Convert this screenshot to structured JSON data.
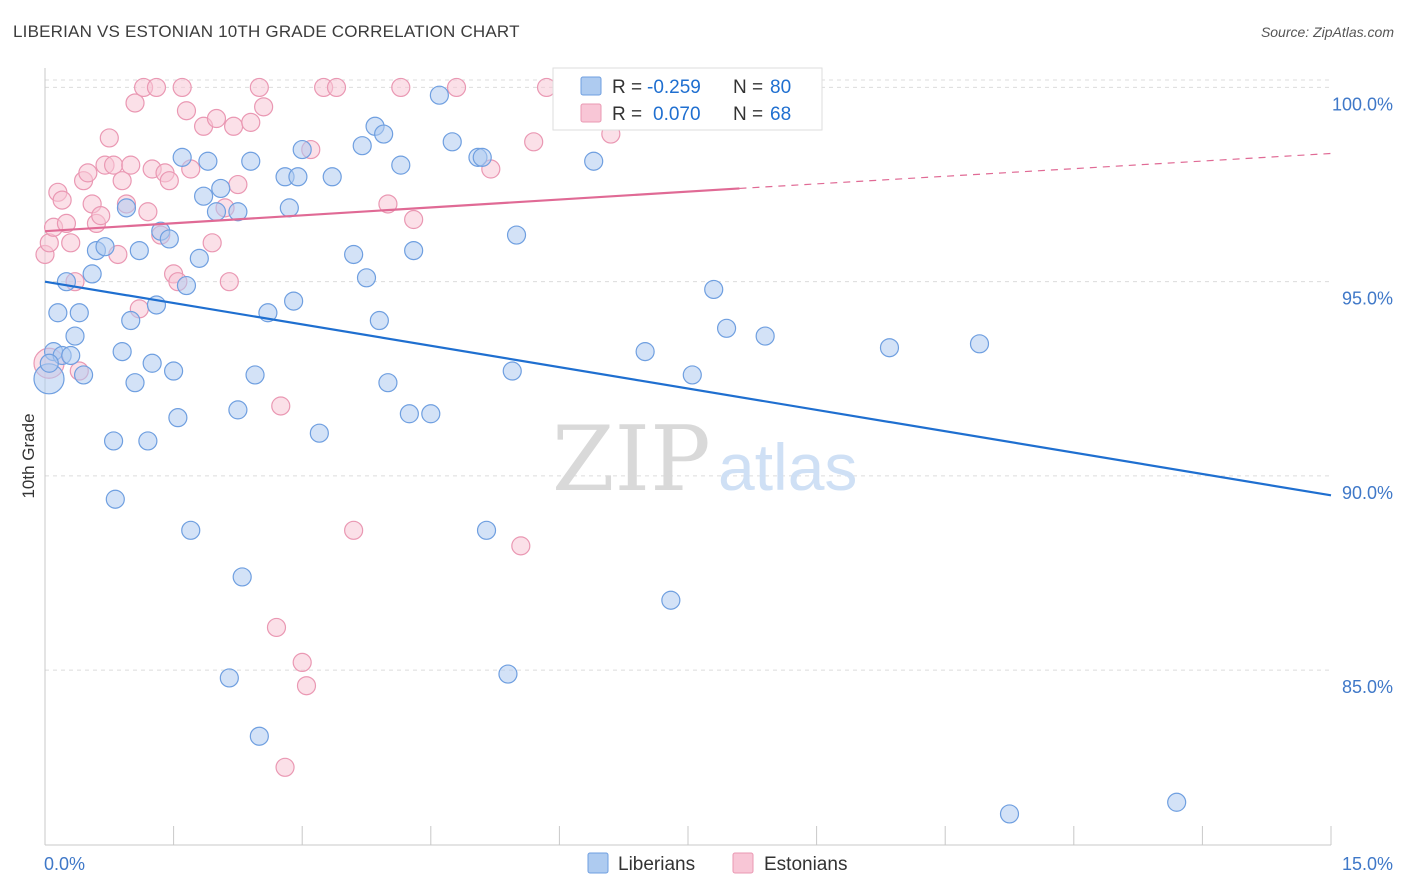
{
  "title": "LIBERIAN VS ESTONIAN 10TH GRADE CORRELATION CHART",
  "source": "Source: ZipAtlas.com",
  "watermark": {
    "zip": "ZIP",
    "atlas": "atlas"
  },
  "colors": {
    "blue": "#1f6fd0",
    "blue_fill": "#aecbf0",
    "blue_stroke": "#6f9fe0",
    "pink": "#e06a95",
    "pink_fill": "#f8c6d6",
    "pink_stroke": "#ea98b3",
    "tick_label": "#3f78c8",
    "grid": "#dcdcdc"
  },
  "legend_box": {
    "rows": [
      {
        "r_label": "R =",
        "r_value": "-0.259",
        "n_label": "N =",
        "n_value": "80",
        "series": "blue"
      },
      {
        "r_label": "R =",
        "r_value": "0.070",
        "n_label": "N =",
        "n_value": "68",
        "series": "pink"
      }
    ]
  },
  "chart_data": {
    "type": "scatter",
    "title": "LIBERIAN VS ESTONIAN 10TH GRADE CORRELATION CHART",
    "ylabel": "10th Grade",
    "xlabel": "",
    "xlim": [
      0,
      15
    ],
    "ylim": [
      80.5,
      100.5
    ],
    "x_tick_labels": [
      "0.0%",
      "15.0%"
    ],
    "y_ticks": [
      85,
      90,
      95,
      100
    ],
    "y_tick_labels": [
      "85.0%",
      "90.0%",
      "95.0%",
      "100.0%"
    ],
    "grid": true,
    "legend_position": "bottom",
    "series": [
      {
        "name": "Liberians",
        "color": "blue",
        "r": -0.259,
        "n": 80,
        "trend": {
          "x": [
            0,
            15
          ],
          "y": [
            95.0,
            89.5
          ]
        },
        "points": [
          [
            0.0,
            92.5
          ],
          [
            0.1,
            93.2
          ],
          [
            0.15,
            94.2
          ],
          [
            0.2,
            93.1
          ],
          [
            0.25,
            95.0
          ],
          [
            0.3,
            93.1
          ],
          [
            0.35,
            93.6
          ],
          [
            0.4,
            94.2
          ],
          [
            0.45,
            92.6
          ],
          [
            0.55,
            95.2
          ],
          [
            0.6,
            95.8
          ],
          [
            0.7,
            95.9
          ],
          [
            0.8,
            90.9
          ],
          [
            0.82,
            89.4
          ],
          [
            0.9,
            93.2
          ],
          [
            0.95,
            96.9
          ],
          [
            1.0,
            94.0
          ],
          [
            1.05,
            92.4
          ],
          [
            1.1,
            95.8
          ],
          [
            1.2,
            90.9
          ],
          [
            1.25,
            92.9
          ],
          [
            1.3,
            94.4
          ],
          [
            1.35,
            96.3
          ],
          [
            1.45,
            96.1
          ],
          [
            1.5,
            92.7
          ],
          [
            1.55,
            91.5
          ],
          [
            1.6,
            98.2
          ],
          [
            1.65,
            94.9
          ],
          [
            1.7,
            88.6
          ],
          [
            1.8,
            95.6
          ],
          [
            1.85,
            97.2
          ],
          [
            1.9,
            98.1
          ],
          [
            2.0,
            96.8
          ],
          [
            2.05,
            97.4
          ],
          [
            2.15,
            84.8
          ],
          [
            2.25,
            96.8
          ],
          [
            2.25,
            91.7
          ],
          [
            2.3,
            87.4
          ],
          [
            2.4,
            98.1
          ],
          [
            2.45,
            92.6
          ],
          [
            2.5,
            83.3
          ],
          [
            2.6,
            94.2
          ],
          [
            2.8,
            97.7
          ],
          [
            2.85,
            96.9
          ],
          [
            2.9,
            94.5
          ],
          [
            2.95,
            97.7
          ],
          [
            3.0,
            98.4
          ],
          [
            3.2,
            91.1
          ],
          [
            3.35,
            97.7
          ],
          [
            3.6,
            95.7
          ],
          [
            3.7,
            98.5
          ],
          [
            3.75,
            95.1
          ],
          [
            3.85,
            99.0
          ],
          [
            3.9,
            94.0
          ],
          [
            3.95,
            98.8
          ],
          [
            4.0,
            92.4
          ],
          [
            4.15,
            98.0
          ],
          [
            4.25,
            91.6
          ],
          [
            4.3,
            95.8
          ],
          [
            4.5,
            91.6
          ],
          [
            4.6,
            99.8
          ],
          [
            4.75,
            98.6
          ],
          [
            5.05,
            98.2
          ],
          [
            5.1,
            98.2
          ],
          [
            5.15,
            88.6
          ],
          [
            5.4,
            84.9
          ],
          [
            5.45,
            92.7
          ],
          [
            5.5,
            96.2
          ],
          [
            6.4,
            98.1
          ],
          [
            7.0,
            93.2
          ],
          [
            7.3,
            86.8
          ],
          [
            7.55,
            92.6
          ],
          [
            7.8,
            94.8
          ],
          [
            7.95,
            93.8
          ],
          [
            8.4,
            93.6
          ],
          [
            9.85,
            93.3
          ],
          [
            10.9,
            93.4
          ],
          [
            11.25,
            81.3
          ],
          [
            13.2,
            81.6
          ],
          [
            0.05,
            92.9
          ]
        ]
      },
      {
        "name": "Estonians",
        "color": "pink",
        "r": 0.07,
        "n": 68,
        "trend": {
          "x": [
            0,
            8.1,
            15
          ],
          "y": [
            96.3,
            97.4,
            98.3
          ]
        },
        "points": [
          [
            0.0,
            95.7
          ],
          [
            0.05,
            96.0
          ],
          [
            0.1,
            96.4
          ],
          [
            0.15,
            97.3
          ],
          [
            0.2,
            97.1
          ],
          [
            0.25,
            96.5
          ],
          [
            0.3,
            96.0
          ],
          [
            0.35,
            95.0
          ],
          [
            0.4,
            92.7
          ],
          [
            0.45,
            97.6
          ],
          [
            0.5,
            97.8
          ],
          [
            0.55,
            97.0
          ],
          [
            0.6,
            96.5
          ],
          [
            0.65,
            96.7
          ],
          [
            0.7,
            98.0
          ],
          [
            0.75,
            98.7
          ],
          [
            0.8,
            98.0
          ],
          [
            0.85,
            95.7
          ],
          [
            0.9,
            97.6
          ],
          [
            0.95,
            97.0
          ],
          [
            1.0,
            98.0
          ],
          [
            1.05,
            99.6
          ],
          [
            1.1,
            94.3
          ],
          [
            1.15,
            100.0
          ],
          [
            1.2,
            96.8
          ],
          [
            1.25,
            97.9
          ],
          [
            1.3,
            100.0
          ],
          [
            1.35,
            96.2
          ],
          [
            1.4,
            97.8
          ],
          [
            1.45,
            97.6
          ],
          [
            1.5,
            95.2
          ],
          [
            1.55,
            95.0
          ],
          [
            1.6,
            100.0
          ],
          [
            1.65,
            99.4
          ],
          [
            1.7,
            97.9
          ],
          [
            1.85,
            99.0
          ],
          [
            1.95,
            96.0
          ],
          [
            2.0,
            99.2
          ],
          [
            2.1,
            96.9
          ],
          [
            2.15,
            95.0
          ],
          [
            2.2,
            99.0
          ],
          [
            2.25,
            97.5
          ],
          [
            2.4,
            99.1
          ],
          [
            2.5,
            100.0
          ],
          [
            2.55,
            99.5
          ],
          [
            2.7,
            86.1
          ],
          [
            2.75,
            91.8
          ],
          [
            2.8,
            82.5
          ],
          [
            3.0,
            85.2
          ],
          [
            3.05,
            84.6
          ],
          [
            3.1,
            98.4
          ],
          [
            3.25,
            100.0
          ],
          [
            3.4,
            100.0
          ],
          [
            3.6,
            88.6
          ],
          [
            4.0,
            97.0
          ],
          [
            4.15,
            100.0
          ],
          [
            4.3,
            96.6
          ],
          [
            4.8,
            100.0
          ],
          [
            5.2,
            97.9
          ],
          [
            5.55,
            88.2
          ],
          [
            5.7,
            98.6
          ],
          [
            5.85,
            100.0
          ],
          [
            6.3,
            100.0
          ],
          [
            6.6,
            98.8
          ],
          [
            7.1,
            100.0
          ],
          [
            7.9,
            100.0
          ],
          [
            8.0,
            100.0
          ],
          [
            0.0,
            92.9
          ]
        ]
      }
    ]
  }
}
